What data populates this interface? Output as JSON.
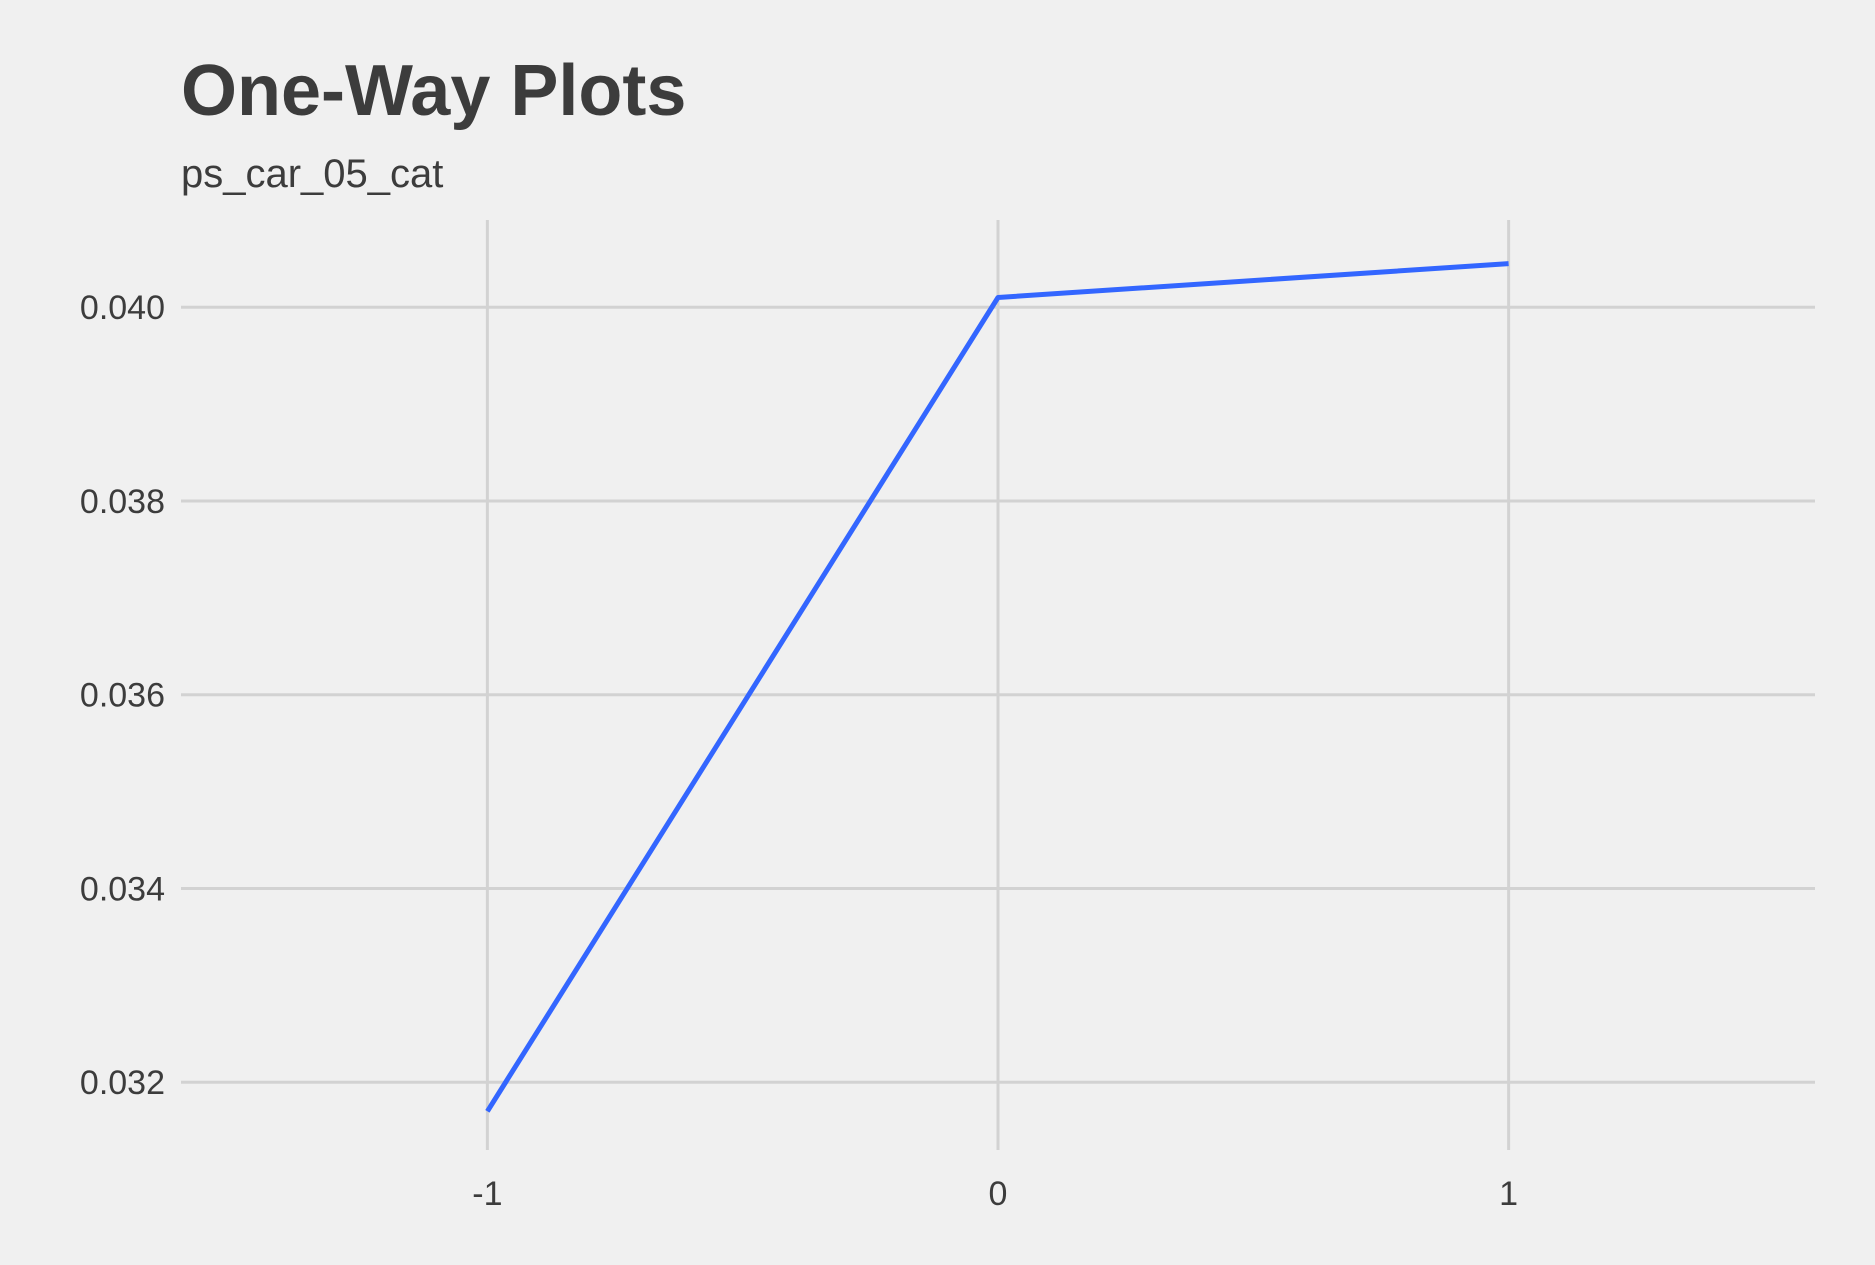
{
  "chart_data": {
    "type": "line",
    "title": "One-Way Plots",
    "subtitle": "ps_car_05_cat",
    "xlabel": "",
    "ylabel": "",
    "x": [
      -1,
      0,
      1
    ],
    "x_tick_labels": [
      "-1",
      "0",
      "1"
    ],
    "xlim": [
      -1.6,
      1.6
    ],
    "y_ticks": [
      0.032,
      0.034,
      0.036,
      0.038,
      0.04
    ],
    "y_tick_labels": [
      "0.032",
      "0.034",
      "0.036",
      "0.038",
      "0.040"
    ],
    "ylim": [
      0.0313,
      0.0409
    ],
    "grid": true,
    "legend": "none",
    "series": [
      {
        "values": [
          0.0317,
          0.0401,
          0.04045
        ],
        "color": "#3366ff"
      }
    ]
  },
  "colors": {
    "background": "#f0f0f0",
    "grid": "#d2d2d2",
    "text": "#3c3c3c",
    "line": "#3366ff"
  }
}
